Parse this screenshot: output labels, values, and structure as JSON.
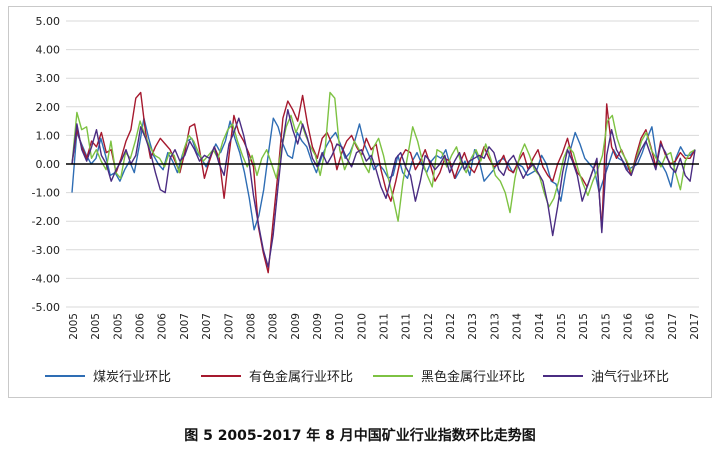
{
  "caption": "图 5 2005-2017 年 8 月中国矿业行业指数环比走势图",
  "chart_data": {
    "type": "line",
    "title": "",
    "xlabel": "",
    "ylabel": "",
    "ylim": [
      -5,
      5
    ],
    "y_ticks": [
      "5.00",
      "4.00",
      "3.00",
      "2.00",
      "1.00",
      "0.00",
      "-1.00",
      "-2.00",
      "-3.00",
      "-4.00",
      "-5.00"
    ],
    "y_tick_values": [
      5,
      4,
      3,
      2,
      1,
      0,
      -1,
      -2,
      -3,
      -4,
      -5
    ],
    "x_tick_labels": [
      "2005",
      "2005",
      "2005",
      "2006",
      "2006",
      "2007",
      "2007",
      "2007",
      "2008",
      "2008",
      "2009",
      "2009",
      "2010",
      "2010",
      "2011",
      "2011",
      "2012",
      "2012",
      "2013",
      "2013",
      "2014",
      "2014",
      "2015",
      "2015",
      "2015",
      "2016",
      "2016",
      "2017",
      "2017"
    ],
    "legend_position": "bottom",
    "grid": true,
    "series": [
      {
        "name": "煤炭行业环比",
        "color": "#2e6db4",
        "values": [
          -1.0,
          1.1,
          0.7,
          0.3,
          0.0,
          0.2,
          0.9,
          0.3,
          -0.4,
          -0.3,
          -0.6,
          -0.2,
          0.1,
          -0.3,
          0.6,
          1.6,
          0.9,
          0.3,
          0.0,
          -0.2,
          0.4,
          0.1,
          -0.3,
          0.3,
          0.8,
          0.9,
          0.4,
          0.2,
          -0.1,
          0.3,
          0.7,
          0.4,
          0.8,
          1.5,
          0.9,
          0.4,
          -0.3,
          -1.2,
          -2.3,
          -1.8,
          -0.9,
          0.4,
          1.6,
          1.3,
          0.7,
          0.3,
          0.2,
          1.1,
          0.8,
          0.6,
          0.1,
          -0.3,
          0.2,
          0.6,
          0.9,
          1.1,
          0.7,
          0.2,
          0.4,
          0.8,
          1.4,
          0.7,
          0.3,
          -0.2,
          0.0,
          -0.2,
          -0.5,
          -0.4,
          0.3,
          -0.3,
          -0.5,
          0.1,
          0.4,
          0.0,
          -0.3,
          0.1,
          0.3,
          0.2,
          0.5,
          -0.1,
          -0.5,
          -0.2,
          0.1,
          -0.4,
          0.5,
          0.1,
          -0.6,
          -0.4,
          -0.2,
          0.1,
          0.2,
          0.0,
          -0.3,
          0.0,
          -0.1,
          -0.4,
          -0.3,
          -0.2,
          0.3,
          0.0,
          -0.6,
          -0.7,
          -1.3,
          -0.3,
          0.5,
          1.1,
          0.7,
          0.2,
          0.0,
          -0.2,
          -1.0,
          -0.5,
          0.0,
          0.5,
          0.2,
          0.1,
          -0.2,
          -0.1,
          0.0,
          0.4,
          0.9,
          1.3,
          0.2,
          0.0,
          -0.3,
          -0.8,
          0.2,
          0.6,
          0.3,
          0.3,
          0.5
        ]
      },
      {
        "name": "有色金属行业环比",
        "color": "#a6192e",
        "values": [
          0.0,
          1.2,
          0.6,
          0.2,
          0.8,
          0.6,
          1.1,
          0.4,
          0.5,
          -0.3,
          0.2,
          0.8,
          1.2,
          2.3,
          2.5,
          1.1,
          0.2,
          0.6,
          0.9,
          0.7,
          0.5,
          0.1,
          -0.3,
          0.4,
          1.3,
          1.4,
          0.5,
          -0.5,
          0.1,
          0.6,
          0.2,
          -1.2,
          0.3,
          1.7,
          1.1,
          0.8,
          0.4,
          -0.1,
          -2.2,
          -3.1,
          -3.8,
          -2.0,
          -0.3,
          1.6,
          2.2,
          1.9,
          1.5,
          2.4,
          1.4,
          0.6,
          0.2,
          0.9,
          1.1,
          0.7,
          -0.2,
          0.4,
          0.8,
          1.0,
          0.6,
          0.3,
          0.9,
          0.5,
          0.7,
          -0.2,
          -0.9,
          -1.3,
          -0.6,
          0.2,
          0.5,
          0.4,
          -0.2,
          0.1,
          0.5,
          0.0,
          -0.6,
          -0.3,
          0.2,
          0.1,
          -0.5,
          0.0,
          0.4,
          -0.1,
          -0.3,
          0.1,
          0.6,
          0.2,
          -0.1,
          0.0,
          0.3,
          -0.2,
          -0.3,
          0.1,
          0.4,
          -0.2,
          0.2,
          0.5,
          -0.1,
          -0.4,
          -0.6,
          0.0,
          0.4,
          0.9,
          0.2,
          -0.3,
          -0.5,
          -0.8,
          -0.3,
          0.1,
          -2.3,
          2.1,
          0.6,
          0.2,
          0.5,
          0.1,
          -0.4,
          0.3,
          0.9,
          1.2,
          0.6,
          -0.1,
          0.8,
          0.3,
          0.0,
          0.1,
          0.4,
          0.2,
          0.2,
          0.5
        ]
      },
      {
        "name": "黑色金属行业环比",
        "color": "#7dc242",
        "values": [
          0.0,
          1.8,
          1.2,
          1.3,
          0.2,
          0.5,
          0.1,
          -0.2,
          0.8,
          -0.3,
          -0.5,
          0.4,
          0.2,
          0.8,
          1.5,
          1.0,
          0.6,
          0.3,
          0.2,
          -0.1,
          0.4,
          0.3,
          -0.3,
          0.5,
          1.0,
          0.8,
          0.4,
          0.1,
          0.3,
          0.5,
          0.2,
          0.8,
          1.2,
          1.4,
          0.8,
          0.3,
          -0.1,
          0.3,
          -0.4,
          0.2,
          0.5,
          0.0,
          -0.5,
          0.5,
          1.3,
          1.7,
          1.1,
          1.5,
          1.0,
          0.6,
          0.3,
          -0.4,
          0.5,
          2.5,
          2.3,
          0.5,
          -0.2,
          0.2,
          0.8,
          0.5,
          0.0,
          -0.3,
          0.6,
          0.9,
          0.3,
          -0.5,
          -1.2,
          -2.0,
          -0.6,
          0.3,
          1.3,
          0.8,
          0.1,
          -0.4,
          -0.8,
          0.5,
          0.4,
          -0.1,
          0.3,
          0.6,
          0.0,
          -0.3,
          0.2,
          0.5,
          0.1,
          0.7,
          0.2,
          -0.4,
          -0.6,
          -1.0,
          -1.7,
          -0.5,
          0.3,
          0.7,
          0.3,
          -0.2,
          -0.4,
          -1.0,
          -1.5,
          -1.2,
          -0.6,
          0.2,
          0.6,
          0.4,
          -0.2,
          -0.7,
          -1.1,
          -0.6,
          -0.2,
          0.3,
          1.5,
          1.7,
          0.9,
          0.4,
          0.1,
          -0.3,
          0.2,
          0.8,
          1.1,
          0.5,
          0.2,
          -0.1,
          0.3,
          0.4,
          -0.3,
          -0.9,
          0.1,
          0.4,
          0.5
        ]
      },
      {
        "name": "油气行业环比",
        "color": "#4a2c82",
        "values": [
          0.0,
          1.4,
          0.5,
          0.1,
          0.6,
          1.2,
          0.3,
          0.0,
          -0.6,
          -0.2,
          0.1,
          0.5,
          0.0,
          0.3,
          1.3,
          0.9,
          0.4,
          -0.3,
          -0.9,
          -1.0,
          0.2,
          0.5,
          0.1,
          0.3,
          0.8,
          0.5,
          0.1,
          0.3,
          0.2,
          0.6,
          0.0,
          -0.4,
          0.7,
          1.1,
          1.6,
          1.0,
          0.2,
          -1.1,
          -2.1,
          -3.0,
          -3.6,
          -2.5,
          -0.8,
          0.8,
          1.9,
          1.2,
          0.7,
          1.4,
          0.9,
          0.2,
          -0.1,
          0.4,
          0.0,
          0.3,
          0.7,
          0.6,
          0.2,
          -0.1,
          0.4,
          0.5,
          0.1,
          0.3,
          -0.2,
          -0.8,
          -1.2,
          -0.5,
          0.2,
          0.4,
          -0.1,
          -0.4,
          -1.3,
          -0.6,
          0.3,
          0.1,
          -0.2,
          0.0,
          0.3,
          -0.3,
          0.1,
          0.4,
          -0.2,
          0.1,
          0.2,
          0.3,
          0.2,
          0.6,
          0.4,
          -0.2,
          -0.4,
          0.1,
          0.3,
          -0.1,
          -0.5,
          -0.2,
          0.0,
          -0.3,
          -0.6,
          -1.4,
          -2.5,
          -1.5,
          -0.3,
          0.5,
          0.1,
          -0.4,
          -1.3,
          -0.8,
          -0.3,
          0.2,
          -2.4,
          0.3,
          1.2,
          0.5,
          0.2,
          -0.2,
          -0.4,
          0.1,
          0.5,
          0.8,
          0.3,
          -0.2,
          0.7,
          0.4,
          -0.1,
          -0.3,
          0.2,
          -0.4,
          -0.6,
          0.5
        ]
      }
    ]
  }
}
